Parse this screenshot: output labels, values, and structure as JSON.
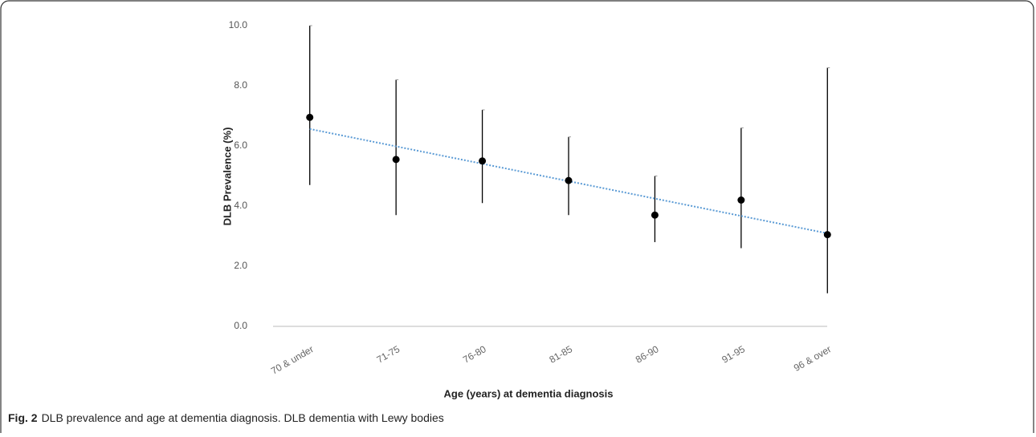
{
  "chart_data": {
    "type": "errorbar",
    "caption": {
      "label": "Fig. 2",
      "text": "DLB prevalence and age at dementia diagnosis. DLB dementia with Lewy bodies"
    },
    "x_label": "Age (years) at dementia diagnosis",
    "y_label": "DLB Prevalence (%)",
    "categories": [
      "70 & under",
      "71-75",
      "76-80",
      "81-85",
      "86-90",
      "91-95",
      "96 & over"
    ],
    "series": [
      {
        "color": "#000000",
        "values": [
          6.95,
          5.55,
          5.5,
          4.85,
          3.7,
          4.2,
          3.05
        ],
        "lower": [
          4.7,
          3.7,
          4.1,
          3.7,
          2.8,
          2.6,
          1.1
        ],
        "upper": [
          10.0,
          8.2,
          7.2,
          6.3,
          5.0,
          6.6,
          8.6
        ]
      }
    ],
    "trendline": {
      "kind": "linear",
      "color": "#5b9bd5"
    },
    "ylim": [
      0,
      10
    ],
    "yticks": [
      {
        "value": 0,
        "label": "0.0"
      },
      {
        "value": 2,
        "label": "2.0"
      },
      {
        "value": 4,
        "label": "4.0"
      },
      {
        "value": 6,
        "label": "6.0"
      },
      {
        "value": 8,
        "label": "8.0"
      },
      {
        "value": 10,
        "label": "10.0"
      }
    ]
  }
}
